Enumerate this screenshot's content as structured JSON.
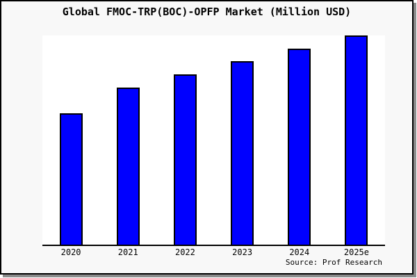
{
  "chart_data": {
    "type": "bar",
    "title": "Global FMOC-TRP(BOC)-OPFP Market (Million USD)",
    "categories": [
      "2020",
      "2021",
      "2022",
      "2023",
      "2024",
      "2025e"
    ],
    "values": [
      62.8,
      75.1,
      81.4,
      87.7,
      93.7,
      100
    ],
    "values_note": "relative index (2025e = 100); chart shows no y-axis tick labels or gridlines",
    "xlabel": "",
    "ylabel": "",
    "y_axis_labeled": false,
    "grid": false,
    "legend": false,
    "source": "Source: Prof Research"
  },
  "colors": {
    "bar_fill": "#0000ff",
    "bar_border": "#000000",
    "canvas_background": "#f8f8f8",
    "plot_background": "#ffffff",
    "axis": "#000000",
    "frame_border": "#000000",
    "frame_shadow": "#8c8c8c",
    "text": "#000000"
  }
}
